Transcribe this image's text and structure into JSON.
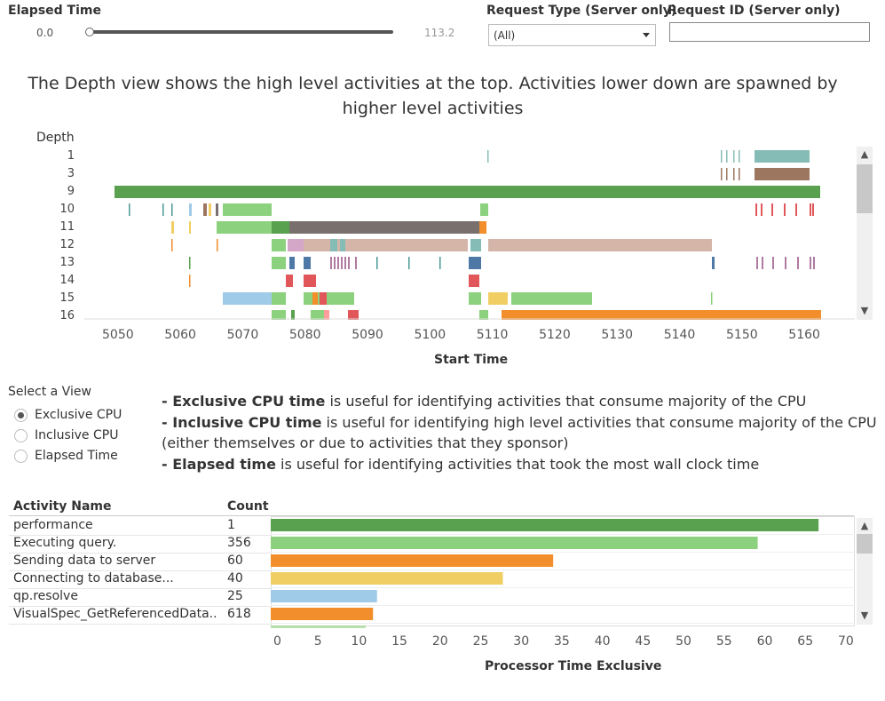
{
  "filters": {
    "elapsed_label": "Elapsed Time",
    "elapsed_min": "0.0",
    "elapsed_max": "113.2",
    "request_type_label": "Request Type (Server only)",
    "request_type_value": "(All)",
    "request_id_label": "Request ID (Server only)",
    "request_id_value": ""
  },
  "depth_chart": {
    "title": "The Depth view shows the high level activities at the top. Activities lower down are spawned by higher level activities",
    "ylabel": "Depth",
    "xlabel": "Start Time",
    "depth_levels": [
      "1",
      "3",
      "9",
      "10",
      "11",
      "12",
      "13",
      "14",
      "15",
      "16"
    ],
    "x_ticks": [
      "5050",
      "5060",
      "5070",
      "5080",
      "5090",
      "5100",
      "5110",
      "5120",
      "5130",
      "5140",
      "5150",
      "5160"
    ]
  },
  "view_selector": {
    "label": "Select a View",
    "options": [
      "Exclusive CPU",
      "Inclusive CPU",
      "Elapsed Time"
    ],
    "selected": "Exclusive CPU"
  },
  "info": {
    "line1_bold": "- Exclusive CPU time",
    "line1_rest": " is useful for identifying activities that consume majority of the CPU",
    "line2_bold": "- Inclusive CPU time",
    "line2_rest": " is useful for identifying high level activities that consume majority of the CPU",
    "line3": "(either themselves or due to activities that they sponsor)",
    "line4_bold": "- Elapsed time",
    "line4_rest": " is useful for identifying activities that took the most wall clock time"
  },
  "table": {
    "col_activity": "Activity Name",
    "col_count": "Count",
    "rows": [
      {
        "name": "performance",
        "count": "1"
      },
      {
        "name": "Executing query.",
        "count": "356"
      },
      {
        "name": "Sending data to server",
        "count": "60"
      },
      {
        "name": "Connecting to database...",
        "count": "40"
      },
      {
        "name": "qp.resolve",
        "count": "25"
      },
      {
        "name": "VisualSpec_GetReferencedData..",
        "count": "618"
      }
    ]
  },
  "chart_data": {
    "type": "bar",
    "orientation": "horizontal",
    "categories": [
      "performance",
      "Executing query.",
      "Sending data to server",
      "Connecting to database...",
      "qp.resolve",
      "VisualSpec_GetReferencedData.."
    ],
    "values": [
      67.5,
      60,
      34.8,
      28.6,
      13.1,
      12.6
    ],
    "colors": [
      "#59a14f",
      "#8cd17d",
      "#f28e2b",
      "#f1ce63",
      "#a0cbe8",
      "#f28e2b"
    ],
    "xlim": [
      0,
      70
    ],
    "x_ticks": [
      "0",
      "5",
      "10",
      "15",
      "20",
      "25",
      "30",
      "35",
      "40",
      "45",
      "50",
      "55",
      "60",
      "65",
      "70"
    ],
    "xlabel": "Processor Time Exclusive"
  }
}
